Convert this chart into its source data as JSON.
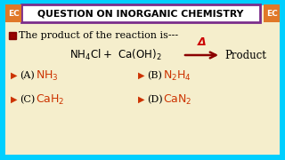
{
  "bg_outer": "#00cfff",
  "bg_inner": "#f5eecc",
  "title_bg": "#ffffff",
  "title_border": "#7b2d8b",
  "ec_bg": "#e07828",
  "ec_text": "EC",
  "title_text": "QUESTION ON INORGANIC CHEMISTRY",
  "question_text": "The product of the reaction is---",
  "product_text": "Product",
  "delta_text": "Δ",
  "option_color": "#cc3300",
  "arrow_color": "#8b0000",
  "delta_color": "#cc0000",
  "black": "#000000",
  "white": "#ffffff"
}
